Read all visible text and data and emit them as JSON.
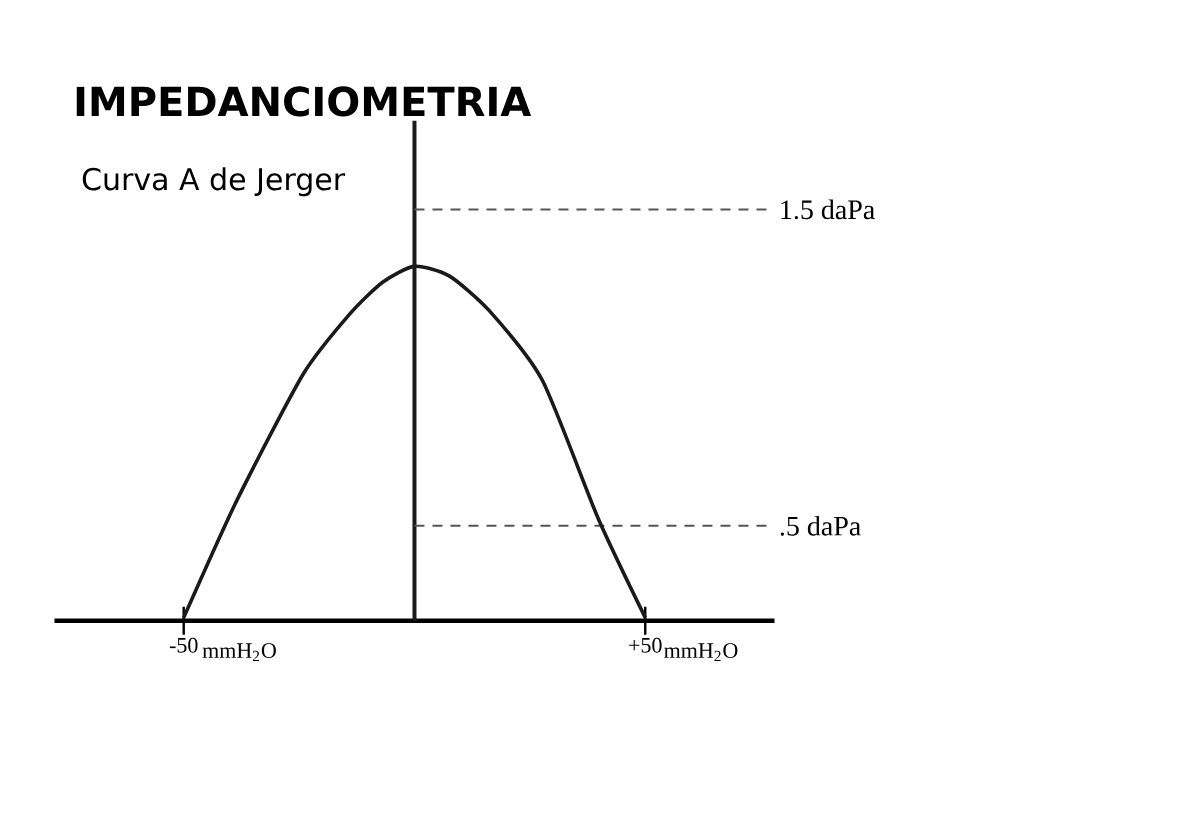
{
  "chart_data": {
    "type": "line",
    "title": "IMPEDANCIOMETRIA",
    "subtitle": "Curva A de Jerger",
    "x": [
      -50,
      -38.5,
      -24.1,
      -14.0,
      -6.9,
      0,
      7.5,
      16.2,
      27.7,
      39.9,
      50
    ],
    "series": [
      {
        "color": "#1a1a1a",
        "values": [
          0.21,
          0.58,
          0.98,
          1.17,
          1.27,
          1.32,
          1.29,
          1.18,
          0.96,
          0.52,
          0.21
        ]
      }
    ],
    "xlim": [
      -78,
      78
    ],
    "ylim": [
      0.2,
      1.78
    ],
    "xticks": [
      -50,
      {
        "value": 50,
        "label": "+50"
      }
    ],
    "annotations": [
      "mmH$_{2}$O",
      "mmH$_{2}$O"
    ],
    "tick_labels": "x",
    "line_style": "solid",
    "ref_lines": [
      {
        "axis": "x",
        "value": 0,
        "color": "#1a1a1a",
        "line_style": "solid"
      },
      {
        "axis": "y",
        "value": 1.5,
        "label": "1.5 daPa",
        "color": "#555555",
        "line_style": "dashed"
      },
      {
        "axis": "y",
        "value": 0.5,
        "label": ".5 daPa",
        "color": "#555555",
        "line_style": "dashed"
      }
    ]
  }
}
